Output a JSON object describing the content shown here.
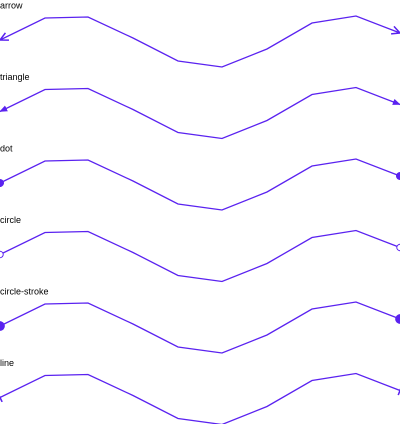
{
  "rows": [
    {
      "label": "arrow"
    },
    {
      "label": "triangle"
    },
    {
      "label": "dot"
    },
    {
      "label": "circle"
    },
    {
      "label": "circle-stroke"
    },
    {
      "label": "line"
    }
  ]
}
